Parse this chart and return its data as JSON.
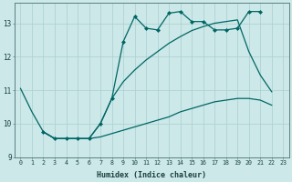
{
  "xlabel": "Humidex (Indice chaleur)",
  "background_color": "#cce8e8",
  "grid_color": "#aacfcf",
  "line_color": "#006666",
  "xlim": [
    -0.5,
    23.5
  ],
  "ylim": [
    9,
    13.6
  ],
  "yticks": [
    9,
    10,
    11,
    12,
    13
  ],
  "xticks": [
    0,
    1,
    2,
    3,
    4,
    5,
    6,
    7,
    8,
    9,
    10,
    11,
    12,
    13,
    14,
    15,
    16,
    17,
    18,
    19,
    20,
    21,
    22,
    23
  ],
  "line1_x": [
    0,
    1,
    2,
    3,
    4,
    5,
    6,
    7,
    8,
    9,
    10,
    11,
    12,
    13,
    14,
    15,
    16,
    17,
    18,
    19,
    20,
    21,
    22
  ],
  "line1_y": [
    11.05,
    10.35,
    9.75,
    9.55,
    9.55,
    9.55,
    9.55,
    9.6,
    9.7,
    9.8,
    9.9,
    10.0,
    10.1,
    10.2,
    10.35,
    10.45,
    10.55,
    10.65,
    10.7,
    10.75,
    10.75,
    10.7,
    10.55
  ],
  "line2_x": [
    2,
    3,
    4,
    5,
    6,
    7,
    8,
    9,
    10,
    11,
    12,
    13,
    14,
    15,
    16,
    17,
    18,
    19,
    20,
    21,
    22
  ],
  "line2_y": [
    9.75,
    9.55,
    9.55,
    9.55,
    9.55,
    10.0,
    10.75,
    11.25,
    11.6,
    11.9,
    12.15,
    12.4,
    12.6,
    12.78,
    12.9,
    13.0,
    13.05,
    13.1,
    12.15,
    11.45,
    10.95
  ],
  "line3_x": [
    2,
    3,
    4,
    5,
    6,
    7,
    8,
    9,
    10,
    11,
    12,
    13,
    14,
    15,
    16,
    17,
    18,
    19,
    20,
    21
  ],
  "line3_y": [
    9.75,
    9.55,
    9.55,
    9.55,
    9.55,
    10.0,
    10.75,
    12.45,
    13.2,
    12.85,
    12.8,
    13.3,
    13.35,
    13.05,
    13.05,
    12.8,
    12.8,
    12.85,
    13.35,
    13.35
  ]
}
